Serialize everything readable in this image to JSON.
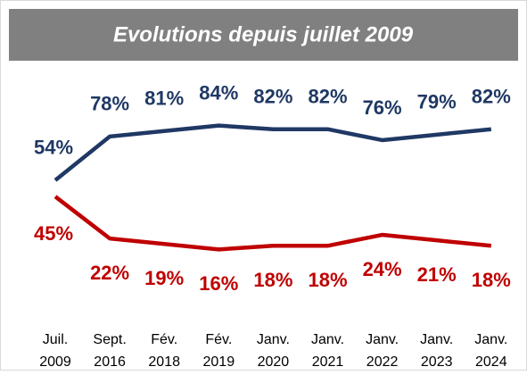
{
  "chart_data": {
    "type": "line",
    "title": "Evolutions depuis juillet 2009",
    "categories": [
      [
        "Juil.",
        "2009"
      ],
      [
        "Sept.",
        "2016"
      ],
      [
        "Fév.",
        "2018"
      ],
      [
        "Fév.",
        "2019"
      ],
      [
        "Janv.",
        "2020"
      ],
      [
        "Janv.",
        "2021"
      ],
      [
        "Janv.",
        "2022"
      ],
      [
        "Janv.",
        "2023"
      ],
      [
        "Janv.",
        "2024"
      ]
    ],
    "series": [
      {
        "color": "#1f3864",
        "values": [
          54,
          78,
          81,
          84,
          82,
          82,
          76,
          79,
          82
        ],
        "value_labels": [
          "54%",
          "78%",
          "81%",
          "84%",
          "82%",
          "82%",
          "76%",
          "79%",
          "82%"
        ]
      },
      {
        "color": "#c00000",
        "values": [
          45,
          22,
          19,
          16,
          18,
          18,
          24,
          21,
          18
        ],
        "value_labels": [
          "45%",
          "22%",
          "19%",
          "16%",
          "18%",
          "18%",
          "24%",
          "21%",
          "18%"
        ]
      }
    ]
  }
}
